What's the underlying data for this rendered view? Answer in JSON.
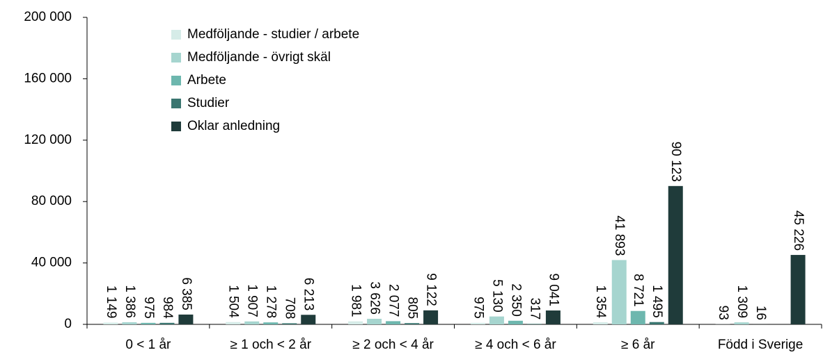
{
  "chart_data": {
    "type": "bar",
    "categories": [
      "0 < 1 år",
      "≥ 1 och < 2 år",
      "≥ 2 och < 4 år",
      "≥ 4 och < 6 år",
      "≥ 6 år",
      "Född i Sverige"
    ],
    "series": [
      {
        "name": "Medföljande - studier / arbete",
        "color": "#d6ece8",
        "values": [
          1149,
          1504,
          1981,
          975,
          1354,
          93
        ],
        "value_labels": [
          "1 149",
          "1 504",
          "1 981",
          "975",
          "1 354",
          "93"
        ]
      },
      {
        "name": "Medföljande - övrigt skäl",
        "color": "#a6d5cf",
        "values": [
          1386,
          1907,
          3626,
          5130,
          41893,
          1309
        ],
        "value_labels": [
          "1 386",
          "1 907",
          "3 626",
          "5 130",
          "41 893",
          "1 309"
        ]
      },
      {
        "name": "Arbete",
        "color": "#6db7ae",
        "values": [
          975,
          1278,
          2077,
          2350,
          8721,
          16
        ],
        "value_labels": [
          "975",
          "1 278",
          "2 077",
          "2 350",
          "8 721",
          "16"
        ]
      },
      {
        "name": "Studier",
        "color": "#3a7670",
        "values": [
          984,
          708,
          805,
          317,
          1495,
          null
        ],
        "value_labels": [
          "984",
          "708",
          "805",
          "317",
          "1 495",
          null
        ]
      },
      {
        "name": "Oklar anledning",
        "color": "#1f3b3a",
        "values": [
          6385,
          6213,
          9122,
          9041,
          90123,
          45226
        ],
        "value_labels": [
          "6 385",
          "6 213",
          "9 122",
          "9 041",
          "90 123",
          "45 226"
        ]
      }
    ],
    "ylim": [
      0,
      200000
    ],
    "yticks": [
      0,
      {
        "value": 40000,
        "label": "40 000"
      },
      {
        "value": 80000,
        "label": "80 000"
      },
      {
        "value": 120000,
        "label": "120 000"
      },
      {
        "value": 160000,
        "label": "160 000"
      },
      {
        "value": 200000,
        "label": "200 000"
      }
    ],
    "grid": false,
    "legend": "upper left"
  }
}
